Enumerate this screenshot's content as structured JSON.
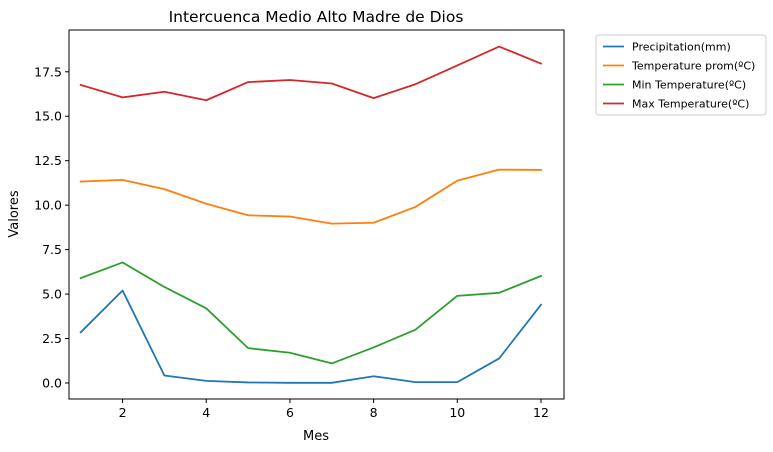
{
  "chart_data": {
    "type": "line",
    "title": "Intercuenca Medio Alto Madre de Dios",
    "xlabel": "Mes",
    "ylabel": "Valores",
    "xlim": [
      0.72,
      12.55
    ],
    "ylim": [
      -0.9,
      19.85
    ],
    "xticks": [
      2,
      4,
      6,
      8,
      10,
      12
    ],
    "xtick_labels": [
      "2",
      "4",
      "6",
      "8",
      "10",
      "12"
    ],
    "yticks": [
      0,
      2.5,
      5,
      7.5,
      10,
      12.5,
      15,
      17.5
    ],
    "ytick_labels": [
      "0.0",
      "2.5",
      "5.0",
      "7.5",
      "10.0",
      "12.5",
      "15.0",
      "17.5"
    ],
    "grid": false,
    "legend_position": "outside-upper-right",
    "x": [
      1,
      2,
      3,
      4,
      5,
      6,
      7,
      8,
      9,
      10,
      11,
      12
    ],
    "series": [
      {
        "name": "Precipitation(mm)",
        "color": "#1f77b4",
        "values": [
          2.85,
          5.2,
          0.42,
          0.12,
          0.03,
          0.01,
          0.01,
          0.38,
          0.05,
          0.05,
          1.38,
          4.4
        ]
      },
      {
        "name": "Temperature prom(ºC)",
        "color": "#ff7f0e",
        "values": [
          11.33,
          11.42,
          10.9,
          10.08,
          9.43,
          9.36,
          8.96,
          9.01,
          9.9,
          11.38,
          12.0,
          11.98
        ]
      },
      {
        "name": "Min Temperature(ºC)",
        "color": "#2ca02c",
        "values": [
          5.9,
          6.78,
          5.4,
          4.2,
          1.96,
          1.7,
          1.1,
          2.0,
          3.0,
          4.9,
          5.07,
          6.02
        ]
      },
      {
        "name": "Max Temperature(ºC)",
        "color": "#d62728",
        "values": [
          16.76,
          16.06,
          16.38,
          15.9,
          16.92,
          17.04,
          16.84,
          16.02,
          16.8,
          17.86,
          18.92,
          17.96
        ]
      }
    ]
  }
}
